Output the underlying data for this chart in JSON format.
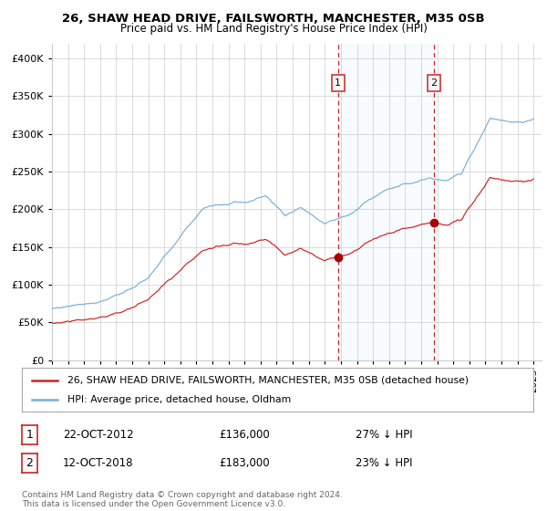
{
  "title": "26, SHAW HEAD DRIVE, FAILSWORTH, MANCHESTER, M35 0SB",
  "subtitle": "Price paid vs. HM Land Registry's House Price Index (HPI)",
  "legend_line1": "26, SHAW HEAD DRIVE, FAILSWORTH, MANCHESTER, M35 0SB (detached house)",
  "legend_line2": "HPI: Average price, detached house, Oldham",
  "sale1_date": "22-OCT-2012",
  "sale1_price": 136000,
  "sale1_note": "27% ↓ HPI",
  "sale2_date": "12-OCT-2018",
  "sale2_price": 183000,
  "sale2_note": "23% ↓ HPI",
  "footer": "Contains HM Land Registry data © Crown copyright and database right 2024.\nThis data is licensed under the Open Government Licence v3.0.",
  "hpi_color": "#7aaed6",
  "price_color": "#cc2222",
  "marker_color": "#aa0000",
  "shading_color": "#ddeeff",
  "dashed_color": "#cc2222",
  "background_color": "#ffffff",
  "grid_color": "#cccccc",
  "ylim": [
    0,
    420000
  ],
  "yticks": [
    0,
    50000,
    100000,
    150000,
    200000,
    250000,
    300000,
    350000,
    400000
  ],
  "xlim_start": 1995.0,
  "xlim_end": 2025.5,
  "sale1_x": 2012.81,
  "sale2_x": 2018.79
}
